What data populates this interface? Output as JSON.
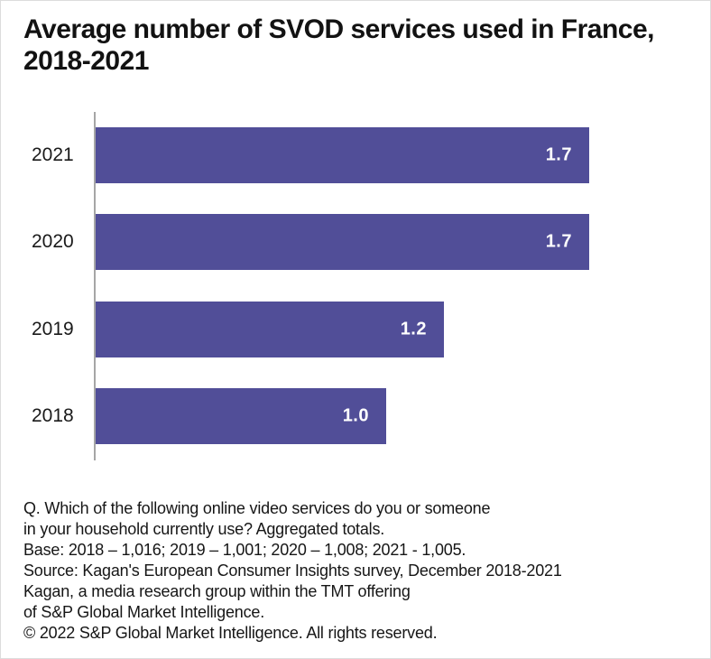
{
  "header": {
    "line1": "Average number of SVOD services used in France,",
    "line2": "2018-2021"
  },
  "chart_data": {
    "type": "bar",
    "orientation": "horizontal",
    "title": "Average number of SVOD services used in France, 2018-2021",
    "categories": [
      "2021",
      "2020",
      "2019",
      "2018"
    ],
    "values": [
      1.7,
      1.7,
      1.2,
      1.0
    ],
    "value_labels": [
      "1.7",
      "1.7",
      "1.2",
      "1.0"
    ],
    "xlabel": "",
    "ylabel": "",
    "xlim": [
      0,
      1.7
    ],
    "grid": false,
    "legend": false,
    "bar_color": "#514E98",
    "data_label_color": "#FFFFFF",
    "axis_line_color": "#A6A6A6"
  },
  "footer": {
    "lines": [
      "Q. Which of the following online video services do you or someone",
      "in your household currently use? Aggregated totals.",
      "Base: 2018 – 1,016; 2019 – 1,001; 2020 – 1,008; 2021 - 1,005.",
      "Source: Kagan's European Consumer Insights survey, December 2018-2021",
      "Kagan, a media research group within the TMT offering",
      "of S&P Global Market Intelligence.",
      "© 2022 S&P Global Market Intelligence. All rights reserved."
    ]
  }
}
